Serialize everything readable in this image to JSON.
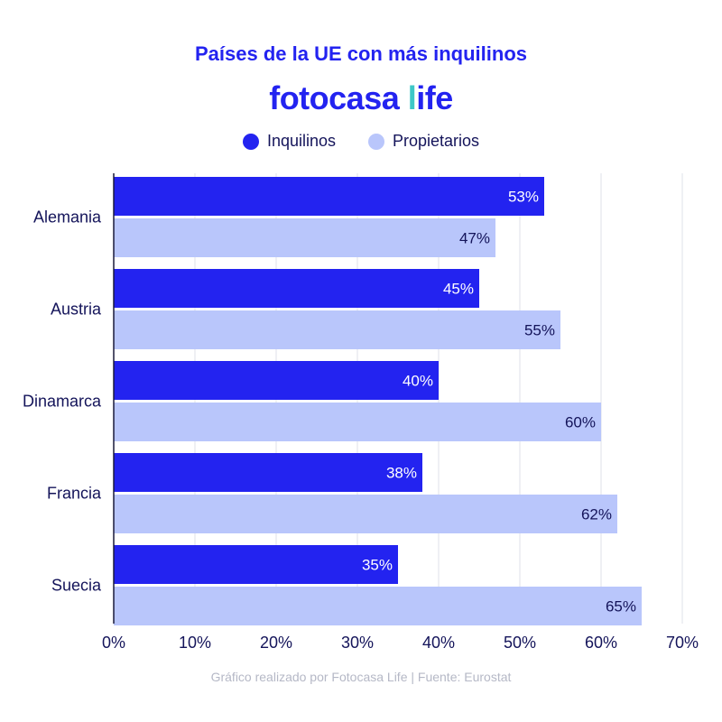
{
  "brand": {
    "main": "fotocasa ",
    "accent_char": "l",
    "rest": "ife"
  },
  "footer": "Gráfico realizado por Fotocasa Life | Fuente: Eurostat",
  "colors": {
    "inquilinos": "#2323f0",
    "propietarios": "#b9c6fb",
    "grid": "#dfe1ea",
    "text": "#14145a",
    "brand_accent": "#3ec7c7"
  },
  "chart_data": {
    "type": "bar",
    "orientation": "horizontal",
    "title": "Países de la UE con más inquilinos",
    "categories": [
      "Alemania",
      "Austria",
      "Dinamarca",
      "Francia",
      "Suecia"
    ],
    "series": [
      {
        "name": "Inquilinos",
        "values": [
          53,
          45,
          40,
          38,
          35
        ],
        "labels": [
          "53%",
          "45%",
          "40%",
          "38%",
          "35%"
        ]
      },
      {
        "name": "Propietarios",
        "values": [
          47,
          55,
          60,
          62,
          65
        ],
        "labels": [
          "47%",
          "55%",
          "60%",
          "62%",
          "65%"
        ]
      }
    ],
    "xlim": [
      0,
      70
    ],
    "xticks": [
      "0%",
      "10%",
      "20%",
      "30%",
      "40%",
      "50%",
      "60%",
      "70%"
    ],
    "grid": "vertical",
    "legend": "top-center"
  }
}
